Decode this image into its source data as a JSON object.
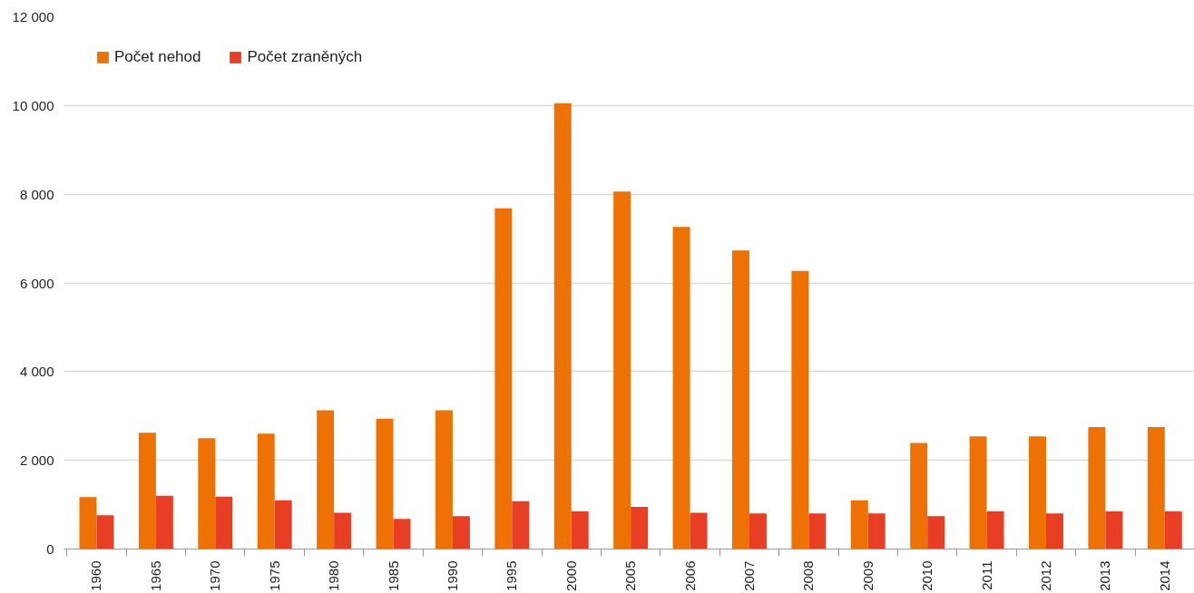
{
  "chart_data": {
    "type": "bar",
    "categories": [
      "1960",
      "1965",
      "1970",
      "1975",
      "1980",
      "1985",
      "1990",
      "1995",
      "2000",
      "2005",
      "2006",
      "2007",
      "2008",
      "2009",
      "2010",
      "2011",
      "2012",
      "2013",
      "2014"
    ],
    "series": [
      {
        "name": "Počet nehod",
        "color": "#ee7203",
        "values": [
          1170,
          2620,
          2500,
          2600,
          3130,
          2940,
          3130,
          7680,
          10050,
          8060,
          7260,
          6730,
          6270,
          1100,
          2390,
          2540,
          2540,
          2750,
          2750
        ]
      },
      {
        "name": "Počet zraněných",
        "color": "#e83f24",
        "values": [
          760,
          1200,
          1180,
          1100,
          820,
          680,
          740,
          1080,
          850,
          950,
          820,
          800,
          800,
          800,
          740,
          850,
          800,
          850,
          850
        ]
      }
    ],
    "ylim": [
      0,
      12000
    ],
    "yticks": [
      {
        "value": 0,
        "label": "0"
      },
      {
        "value": 2000,
        "label": "2 000"
      },
      {
        "value": 4000,
        "label": "4 000"
      },
      {
        "value": 6000,
        "label": "6 000"
      },
      {
        "value": 8000,
        "label": "8 000"
      },
      {
        "value": 10000,
        "label": "10 000"
      },
      {
        "value": 12000,
        "label": "12 000"
      }
    ],
    "grid": "y",
    "legend": "top left"
  }
}
